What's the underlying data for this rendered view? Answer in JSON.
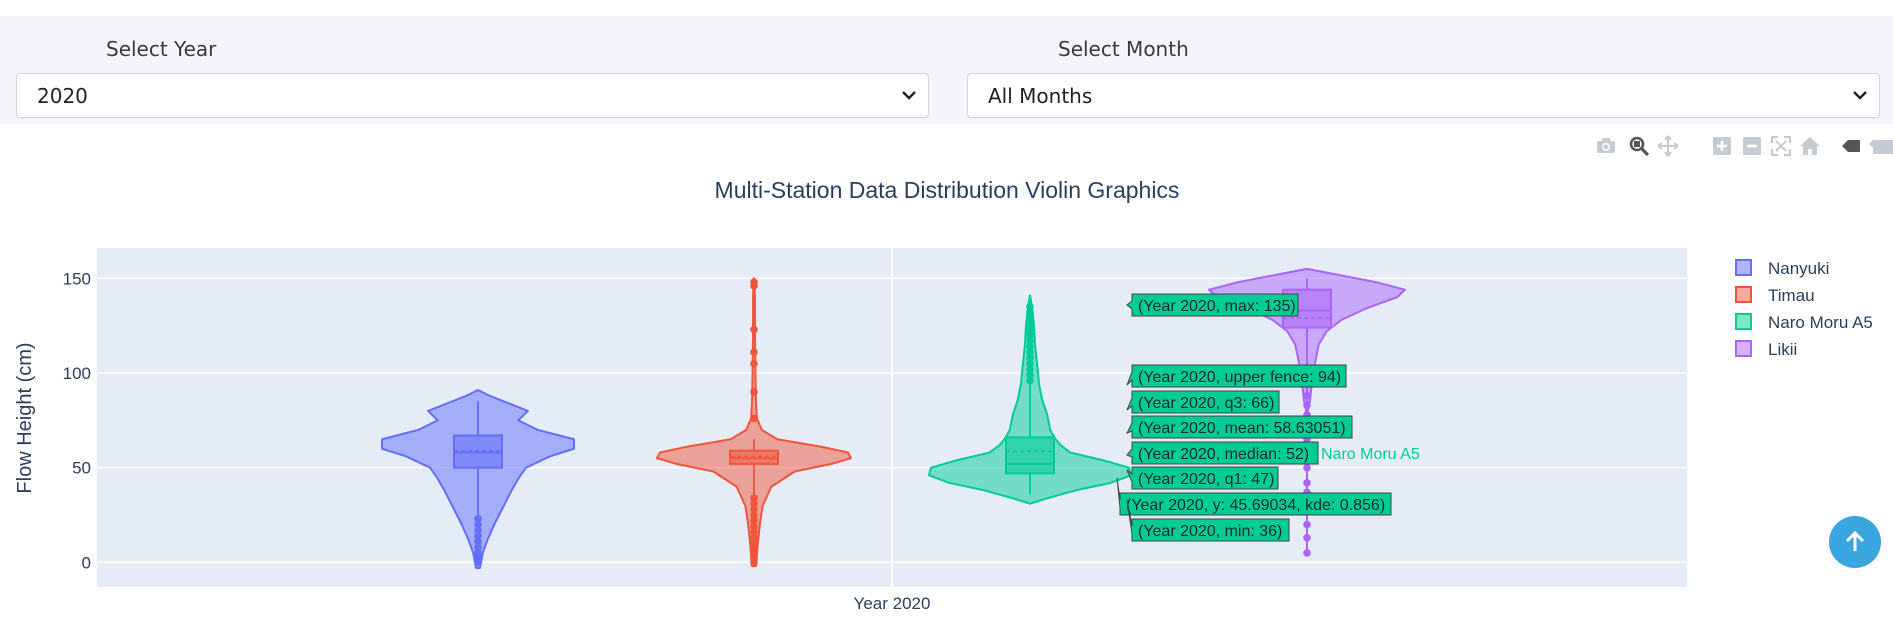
{
  "filters": {
    "year_label": "Select Year",
    "year_value": "2020",
    "month_label": "Select Month",
    "month_value": "All Months"
  },
  "modebar": {
    "icons": [
      "camera-icon",
      "zoom-icon",
      "pan-icon",
      "zoom-in-icon",
      "zoom-out-icon",
      "autoscale-icon",
      "reset-axes-icon",
      "spike-lines-icon",
      "compare-data-icon"
    ]
  },
  "chart_data": {
    "type": "violin",
    "title": "Multi-Station Data Distribution Violin Graphics",
    "xlabel": "",
    "ylabel": "Flow Height (cm)",
    "x_category": "Year 2020",
    "ylim": [
      -13,
      166
    ],
    "yticks": [
      0,
      50,
      100,
      150
    ],
    "grid": true,
    "legend_position": "right",
    "series": [
      {
        "name": "Nanyuki",
        "color": "#636efa",
        "stats": {
          "min": 0,
          "q1": 50,
          "median": 58,
          "mean": 59,
          "q3": 67,
          "upper_fence": 85,
          "max": 85
        },
        "density_y": [
          -3,
          5,
          12,
          20,
          28,
          38,
          45,
          50,
          56,
          60,
          65,
          70,
          75,
          80,
          85,
          88,
          91
        ],
        "density_w": [
          0.02,
          0.05,
          0.1,
          0.17,
          0.25,
          0.35,
          0.43,
          0.5,
          0.75,
          1.0,
          1.0,
          0.62,
          0.42,
          0.52,
          0.27,
          0.12,
          0.0
        ],
        "outliers": [
          23,
          20,
          17,
          14,
          11,
          8,
          5,
          3,
          1,
          0
        ]
      },
      {
        "name": "Timau",
        "color": "#ef553b",
        "stats": {
          "min": 0,
          "q1": 52,
          "median": 55,
          "mean": 56,
          "q3": 59,
          "upper_fence": 65,
          "max": 148
        },
        "density_y": [
          -2,
          10,
          20,
          30,
          40,
          48,
          52,
          55,
          58,
          61,
          65,
          70,
          76,
          85,
          100,
          120,
          140,
          150
        ],
        "density_w": [
          0.02,
          0.04,
          0.06,
          0.09,
          0.18,
          0.42,
          0.8,
          1.0,
          0.97,
          0.7,
          0.24,
          0.08,
          0.03,
          0.02,
          0.015,
          0.01,
          0.01,
          0.0
        ],
        "outliers": [
          148,
          146,
          123,
          111,
          105,
          90,
          76,
          34,
          31,
          28,
          25,
          22,
          19,
          16,
          13,
          10,
          7,
          4,
          2,
          0
        ]
      },
      {
        "name": "Naro Moru A5",
        "color": "#00cc96",
        "stats": {
          "min": 36,
          "q1": 47,
          "median": 52,
          "mean": 58.63051,
          "q3": 66,
          "upper_fence": 94,
          "max": 135
        },
        "density_y": [
          31,
          34,
          38,
          42,
          46,
          50,
          54,
          58,
          62,
          66,
          70,
          78,
          86,
          94,
          105,
          115,
          125,
          135,
          141
        ],
        "density_w": [
          0.0,
          0.18,
          0.45,
          0.8,
          1.0,
          0.98,
          0.72,
          0.4,
          0.3,
          0.24,
          0.2,
          0.17,
          0.12,
          0.09,
          0.07,
          0.05,
          0.04,
          0.02,
          0.0
        ],
        "outliers": [
          96,
          99,
          102,
          105,
          108,
          111,
          114,
          117,
          120,
          123,
          126,
          129,
          132,
          135
        ]
      },
      {
        "name": "Likii",
        "color": "#ab63fa",
        "stats": {
          "min": 5,
          "q1": 124,
          "median": 133,
          "mean": 129,
          "q3": 144,
          "upper_fence": 150,
          "max": 155
        },
        "density_y": [
          78,
          85,
          95,
          105,
          115,
          122,
          128,
          134,
          140,
          144,
          148,
          152,
          155
        ],
        "density_w": [
          0.0,
          0.03,
          0.05,
          0.08,
          0.12,
          0.2,
          0.35,
          0.6,
          0.92,
          1.0,
          0.7,
          0.3,
          0.0
        ],
        "outliers": [
          5,
          13,
          20,
          30,
          37,
          42,
          50,
          58,
          65,
          72,
          78,
          83,
          88,
          94,
          98
        ]
      }
    ],
    "hover_station": "Naro Moru A5",
    "hover_labels": [
      "(Year 2020, max: 135)",
      "(Year 2020, upper fence: 94)",
      "(Year 2020, q3: 66)",
      "(Year 2020, mean: 58.63051)",
      "(Year 2020, median: 52)",
      "(Year 2020, q1: 47)",
      "(Year 2020, y: 45.69034, kde: 0.856)",
      "(Year 2020, min: 36)"
    ]
  }
}
